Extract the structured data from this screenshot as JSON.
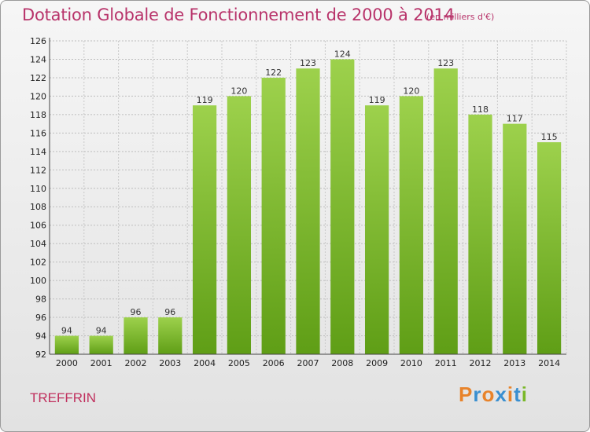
{
  "header": {
    "title": "Dotation Globale de Fonctionnement de 2000 à 2014",
    "unit": "(en milliers d'€)"
  },
  "footer": {
    "commune": "TREFFRIN",
    "logo": "Proxiti"
  },
  "colors": {
    "title": "#b8336a",
    "bar_top": "#9dd14c",
    "bar_bottom": "#5f9e16",
    "logo_letters": [
      "#e8832a",
      "#3a8fd0",
      "#e8832a",
      "#3a8fd0",
      "#e8832a",
      "#3a8fd0",
      "#7ab828"
    ]
  },
  "chart_data": {
    "type": "bar",
    "title": "Dotation Globale de Fonctionnement de 2000 à 2014",
    "subtitle": "(en milliers d'€)",
    "categories": [
      "2000",
      "2001",
      "2002",
      "2003",
      "2004",
      "2005",
      "2006",
      "2007",
      "2008",
      "2009",
      "2010",
      "2011",
      "2012",
      "2013",
      "2014"
    ],
    "values": [
      94,
      94,
      96,
      96,
      119,
      120,
      122,
      123,
      124,
      119,
      120,
      123,
      118,
      117,
      115
    ],
    "xlabel": "",
    "ylabel": "",
    "ylim": [
      92,
      126
    ],
    "yticks": [
      92,
      94,
      96,
      98,
      100,
      102,
      104,
      106,
      108,
      110,
      112,
      114,
      116,
      118,
      120,
      122,
      124,
      126
    ],
    "grid": true,
    "data_labels": true
  }
}
